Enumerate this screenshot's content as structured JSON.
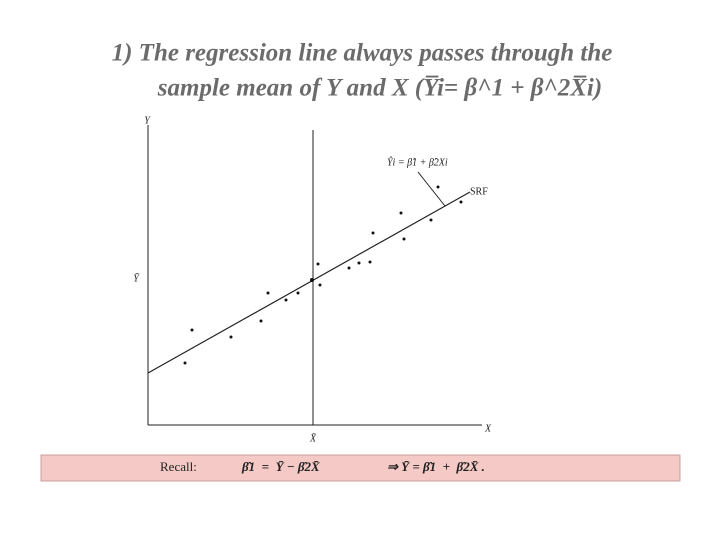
{
  "slide": {
    "title_lines": [
      "1) The regression line always passes through the",
      "sample mean of Y and X  (Y̅i= β^1 + β^2X̅i)"
    ],
    "diagram": {
      "y_axis_label": "Y",
      "x_axis_label": "X",
      "y_mean_label": "Ȳ",
      "x_mean_label": "X̄",
      "line_label": "SRF",
      "equation": "Ŷi = β̂1 + β̂2Xi"
    },
    "recall": {
      "label": "Recall:",
      "formula1": "β̂1  =  Ȳ − β̂2X̄",
      "formula2": "⇒ Ȳ = β̂1  +  β̂2X̄ ."
    }
  }
}
